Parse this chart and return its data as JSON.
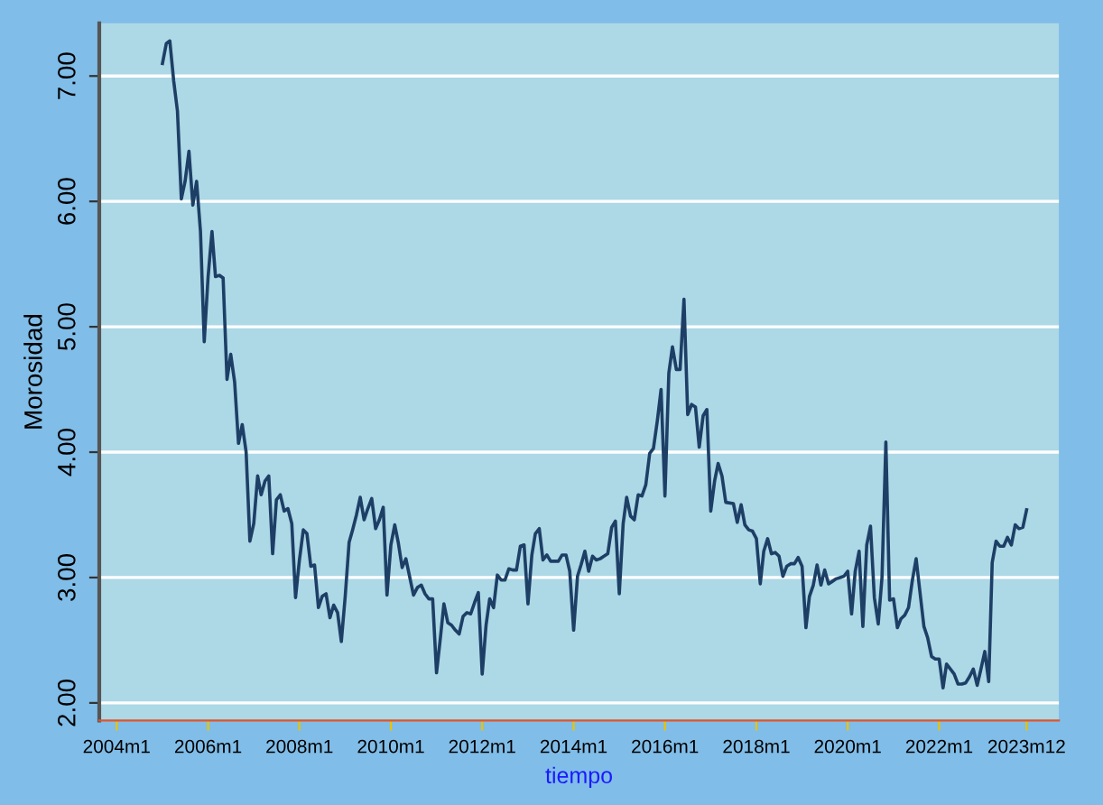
{
  "chart_data": {
    "type": "line",
    "xlabel": "tiempo",
    "ylabel": "Morosidad",
    "grid": "y",
    "line_style": "solid",
    "marker": "none",
    "xlim": [
      "2003-08-15",
      "2024-08-15"
    ],
    "ylim": [
      1.86,
      7.42
    ],
    "xticks": [
      {
        "value": "2004-01",
        "label": "2004m1"
      },
      {
        "value": "2006-01",
        "label": "2006m1"
      },
      {
        "value": "2008-01",
        "label": "2008m1"
      },
      {
        "value": "2010-01",
        "label": "2010m1"
      },
      {
        "value": "2012-01",
        "label": "2012m1"
      },
      {
        "value": "2014-01",
        "label": "2014m1"
      },
      {
        "value": "2016-01",
        "label": "2016m1"
      },
      {
        "value": "2018-01",
        "label": "2018m1"
      },
      {
        "value": "2020-01",
        "label": "2020m1"
      },
      {
        "value": "2022-01",
        "label": "2022m1"
      },
      {
        "value": "2023-12",
        "label": "2023m12"
      }
    ],
    "yticks": [
      {
        "value": 2,
        "label": "2.00"
      },
      {
        "value": 3,
        "label": "3.00"
      },
      {
        "value": 4,
        "label": "4.00"
      },
      {
        "value": 5,
        "label": "5.00"
      },
      {
        "value": 6,
        "label": "6.00"
      },
      {
        "value": 7,
        "label": "7.00"
      }
    ],
    "series": [
      {
        "color": "#1d3f66",
        "x": [
          "2005-01",
          "2005-02",
          "2005-03",
          "2005-04",
          "2005-05",
          "2005-06",
          "2005-07",
          "2005-08",
          "2005-09",
          "2005-10",
          "2005-11",
          "2005-12",
          "2006-01",
          "2006-02",
          "2006-03",
          "2006-04",
          "2006-05",
          "2006-06",
          "2006-07",
          "2006-08",
          "2006-09",
          "2006-10",
          "2006-11",
          "2006-12",
          "2007-01",
          "2007-02",
          "2007-03",
          "2007-04",
          "2007-05",
          "2007-06",
          "2007-07",
          "2007-08",
          "2007-09",
          "2007-10",
          "2007-11",
          "2007-12",
          "2008-01",
          "2008-02",
          "2008-03",
          "2008-04",
          "2008-05",
          "2008-06",
          "2008-07",
          "2008-08",
          "2008-09",
          "2008-10",
          "2008-11",
          "2008-12",
          "2009-01",
          "2009-02",
          "2009-03",
          "2009-04",
          "2009-05",
          "2009-06",
          "2009-07",
          "2009-08",
          "2009-09",
          "2009-10",
          "2009-11",
          "2009-12",
          "2010-01",
          "2010-02",
          "2010-03",
          "2010-04",
          "2010-05",
          "2010-07",
          "2010-08",
          "2010-09",
          "2010-10",
          "2010-11",
          "2010-12",
          "2011-01",
          "2011-02",
          "2011-03",
          "2011-04",
          "2011-05",
          "2011-06",
          "2011-07",
          "2011-08",
          "2011-09",
          "2011-10",
          "2011-11",
          "2011-12",
          "2012-01",
          "2012-02",
          "2012-03",
          "2012-04",
          "2012-05",
          "2012-06",
          "2012-07",
          "2012-08",
          "2012-09",
          "2012-10",
          "2012-11",
          "2012-12",
          "2013-01",
          "2013-02",
          "2013-03",
          "2013-04",
          "2013-05",
          "2013-06",
          "2013-07",
          "2013-08",
          "2013-09",
          "2013-10",
          "2013-11",
          "2013-12",
          "2014-01",
          "2014-02",
          "2014-03",
          "2014-04",
          "2014-05",
          "2014-06",
          "2014-07",
          "2014-08",
          "2014-09",
          "2014-10",
          "2014-11",
          "2014-12",
          "2015-01",
          "2015-02",
          "2015-03",
          "2015-04",
          "2015-05",
          "2015-06",
          "2015-07",
          "2015-08",
          "2015-09",
          "2015-10",
          "2015-11",
          "2015-12",
          "2016-01",
          "2016-02",
          "2016-03",
          "2016-04",
          "2016-05",
          "2016-06",
          "2016-07",
          "2016-08",
          "2016-09",
          "2016-10",
          "2016-11",
          "2016-12",
          "2017-01",
          "2017-02",
          "2017-03",
          "2017-04",
          "2017-05",
          "2017-07",
          "2017-08",
          "2017-09",
          "2017-10",
          "2017-11",
          "2017-12",
          "2018-01",
          "2018-02",
          "2018-03",
          "2018-04",
          "2018-05",
          "2018-06",
          "2018-07",
          "2018-08",
          "2018-09",
          "2018-10",
          "2018-11",
          "2018-12",
          "2019-01",
          "2019-02",
          "2019-03",
          "2019-04",
          "2019-05",
          "2019-06",
          "2019-07",
          "2019-08",
          "2019-09",
          "2019-10",
          "2019-11",
          "2019-12",
          "2020-01",
          "2020-02",
          "2020-03",
          "2020-04",
          "2020-05",
          "2020-06",
          "2020-07",
          "2020-08",
          "2020-09",
          "2020-10",
          "2020-11",
          "2020-12",
          "2021-01",
          "2021-02",
          "2021-03",
          "2021-04",
          "2021-05",
          "2021-06",
          "2021-07",
          "2021-08",
          "2021-09",
          "2021-10",
          "2021-11",
          "2021-12",
          "2022-01",
          "2022-02",
          "2022-03",
          "2022-04",
          "2022-05",
          "2022-06",
          "2022-07",
          "2022-08",
          "2022-09",
          "2022-10",
          "2022-11",
          "2022-12",
          "2023-01",
          "2023-02",
          "2023-03",
          "2023-04",
          "2023-05",
          "2023-06",
          "2023-07",
          "2023-08",
          "2023-09",
          "2023-10",
          "2023-11",
          "2023-12"
        ],
        "values": [
          7.1,
          7.26,
          7.28,
          6.96,
          6.72,
          6.02,
          6.16,
          6.4,
          5.97,
          6.16,
          5.76,
          4.88,
          5.4,
          5.76,
          5.4,
          5.41,
          5.39,
          4.58,
          4.78,
          4.56,
          4.07,
          4.22,
          4.0,
          3.29,
          3.43,
          3.81,
          3.66,
          3.77,
          3.81,
          3.19,
          3.62,
          3.66,
          3.53,
          3.55,
          3.43,
          2.84,
          3.14,
          3.38,
          3.35,
          3.09,
          3.1,
          2.76,
          2.85,
          2.87,
          2.68,
          2.78,
          2.72,
          2.49,
          2.85,
          3.28,
          3.38,
          3.5,
          3.64,
          3.46,
          3.55,
          3.63,
          3.39,
          3.46,
          3.56,
          2.86,
          3.26,
          3.42,
          3.28,
          3.08,
          3.15,
          2.86,
          2.92,
          2.94,
          2.87,
          2.83,
          2.83,
          2.24,
          2.52,
          2.79,
          2.64,
          2.62,
          2.58,
          2.55,
          2.69,
          2.72,
          2.71,
          2.8,
          2.88,
          2.23,
          2.62,
          2.83,
          2.76,
          3.02,
          2.98,
          2.98,
          3.07,
          3.06,
          3.06,
          3.25,
          3.26,
          2.79,
          3.18,
          3.35,
          3.39,
          3.14,
          3.18,
          3.13,
          3.13,
          3.13,
          3.18,
          3.18,
          3.05,
          2.58,
          3.01,
          3.1,
          3.21,
          3.05,
          3.17,
          3.14,
          3.15,
          3.17,
          3.19,
          3.4,
          3.45,
          2.87,
          3.43,
          3.64,
          3.49,
          3.46,
          3.66,
          3.65,
          3.74,
          3.99,
          4.03,
          4.25,
          4.5,
          3.65,
          4.63,
          4.84,
          4.66,
          4.66,
          5.22,
          4.3,
          4.38,
          4.36,
          4.04,
          4.29,
          4.34,
          3.53,
          3.77,
          3.91,
          3.81,
          3.6,
          3.59,
          3.44,
          3.58,
          3.42,
          3.38,
          3.37,
          3.31,
          2.95,
          3.21,
          3.31,
          3.19,
          3.2,
          3.17,
          3.01,
          3.09,
          3.11,
          3.11,
          3.16,
          3.09,
          2.6,
          2.85,
          2.94,
          3.1,
          2.94,
          3.06,
          2.95,
          2.97,
          2.99,
          3.0,
          3.01,
          3.05,
          2.71,
          3.05,
          3.21,
          2.61,
          3.26,
          3.41,
          2.84,
          2.63,
          3.0,
          4.08,
          2.82,
          2.83,
          2.6,
          2.67,
          2.7,
          2.76,
          2.98,
          3.15,
          2.88,
          2.61,
          2.52,
          2.37,
          2.35,
          2.35,
          2.12,
          2.31,
          2.27,
          2.23,
          2.15,
          2.15,
          2.16,
          2.21,
          2.27,
          2.14,
          2.27,
          2.41,
          2.17,
          3.12,
          3.29,
          3.25,
          3.25,
          3.32,
          3.26,
          3.42,
          3.39,
          3.4,
          3.54
        ]
      }
    ]
  }
}
